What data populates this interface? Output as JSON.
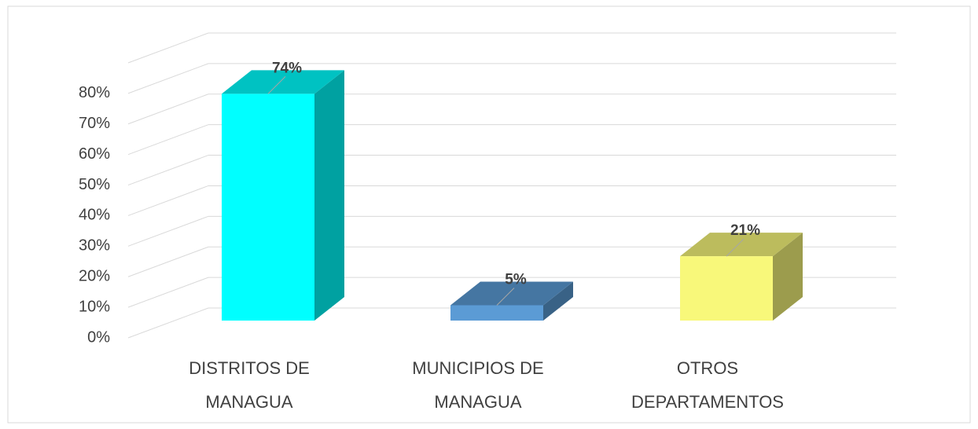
{
  "chart_data": {
    "type": "bar3d",
    "categories": [
      "DISTRITOS DE MANAGUA",
      "MUNICIPIOS DE MANAGUA",
      "OTROS DEPARTAMENTOS"
    ],
    "values": [
      74,
      5,
      21
    ],
    "value_labels": [
      "74%",
      "5%",
      "21%"
    ],
    "colors": [
      "#00ffff",
      "#5b9bd5",
      "#f8f87a"
    ],
    "ylim": [
      0,
      90
    ],
    "yticks": [
      {
        "value": 0,
        "label": "0%"
      },
      {
        "value": 10,
        "label": "10%"
      },
      {
        "value": 20,
        "label": "20%"
      },
      {
        "value": 30,
        "label": "30%"
      },
      {
        "value": 40,
        "label": "40%"
      },
      {
        "value": 50,
        "label": "50%"
      },
      {
        "value": 60,
        "label": "60%"
      },
      {
        "value": 70,
        "label": "70%"
      },
      {
        "value": 80,
        "label": "80%"
      }
    ],
    "grid": true
  }
}
